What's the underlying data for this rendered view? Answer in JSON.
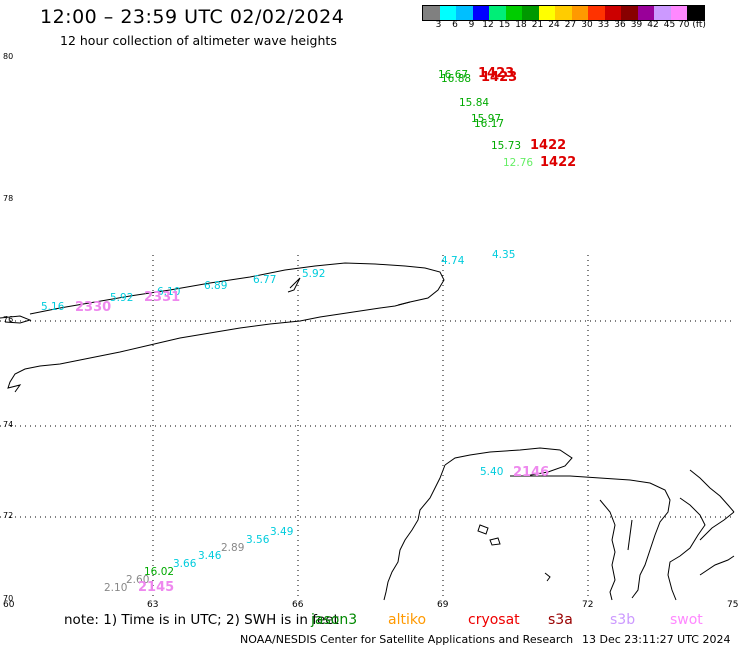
{
  "header": {
    "title": "12:00 – 23:59 UTC 02/02/2024",
    "subtitle": "12 hour collection of altimeter wave heights"
  },
  "colorbar": {
    "colors": [
      "#808080",
      "#00ffff",
      "#00bfff",
      "#0000ff",
      "#00ee77",
      "#00cc00",
      "#009900",
      "#ffff00",
      "#ffcc00",
      "#ff9900",
      "#ff3300",
      "#cc0000",
      "#880000",
      "#990099",
      "#cc99ff",
      "#ff88ff",
      "#000000"
    ],
    "labels": [
      "3",
      "6",
      "9",
      "12",
      "15",
      "18",
      "21",
      "24",
      "27",
      "30",
      "33",
      "36",
      "39",
      "42",
      "45",
      "70 (ft)"
    ]
  },
  "axes": {
    "lat_labels": [
      "80",
      "78",
      "76",
      "74",
      "72",
      "70"
    ],
    "lon_labels": [
      "60",
      "63",
      "66",
      "69",
      "72",
      "75"
    ]
  },
  "observations": [
    {
      "text": "16.67",
      "color": "#00aa00"
    },
    {
      "text": "16.88",
      "color": "#00aa00"
    },
    {
      "text": "15.84",
      "color": "#00aa00"
    },
    {
      "text": "15.97",
      "color": "#00aa00"
    },
    {
      "text": "16.17",
      "color": "#00aa00"
    },
    {
      "text": "15.73",
      "color": "#00aa00"
    },
    {
      "text": "12.76",
      "color": "#66ee66"
    },
    {
      "text": "4.74",
      "color": "#00ccdd"
    },
    {
      "text": "4.35",
      "color": "#00ccdd"
    },
    {
      "text": "5.92",
      "color": "#00ccdd"
    },
    {
      "text": "6.77",
      "color": "#00ccdd"
    },
    {
      "text": "6.89",
      "color": "#00ccdd"
    },
    {
      "text": "6.10",
      "color": "#00ccdd"
    },
    {
      "text": "5.92",
      "color": "#00ccdd"
    },
    {
      "text": "5.16",
      "color": "#00ccdd"
    },
    {
      "text": "5.40",
      "color": "#00ccdd"
    },
    {
      "text": "3.49",
      "color": "#00ccdd"
    },
    {
      "text": "3.56",
      "color": "#00ccdd"
    },
    {
      "text": "2.89",
      "color": "#888888"
    },
    {
      "text": "3.46",
      "color": "#00ccdd"
    },
    {
      "text": "3.66",
      "color": "#00ccdd"
    },
    {
      "text": "16.02",
      "color": "#00aa00"
    },
    {
      "text": "2.60",
      "color": "#888888"
    },
    {
      "text": "2.10",
      "color": "#888888"
    }
  ],
  "passes": [
    {
      "text": "1423",
      "color": "#dd0000"
    },
    {
      "text": "1423",
      "color": "#dd0000"
    },
    {
      "text": "1422",
      "color": "#dd0000"
    },
    {
      "text": "1422",
      "color": "#dd0000"
    },
    {
      "text": "2330",
      "color": "#ee88ee"
    },
    {
      "text": "2331",
      "color": "#ee88ee"
    },
    {
      "text": "2146",
      "color": "#ee88ee"
    },
    {
      "text": "2145",
      "color": "#ee88ee"
    }
  ],
  "note": "note: 1) Time is in UTC; 2) SWH is in feet",
  "legend": [
    {
      "label": "jason3",
      "color": "#008800"
    },
    {
      "label": "altiko",
      "color": "#ff9900"
    },
    {
      "label": "cryosat",
      "color": "#ee0000"
    },
    {
      "label": "s3a",
      "color": "#990000"
    },
    {
      "label": "s3b",
      "color": "#cc99ff"
    },
    {
      "label": "swot",
      "color": "#ff88ff"
    }
  ],
  "footer": "NOAA/NESDIS Center for Satellite Applications and Research",
  "timestamp": "13 Dec 23:11:27 UTC 2024"
}
